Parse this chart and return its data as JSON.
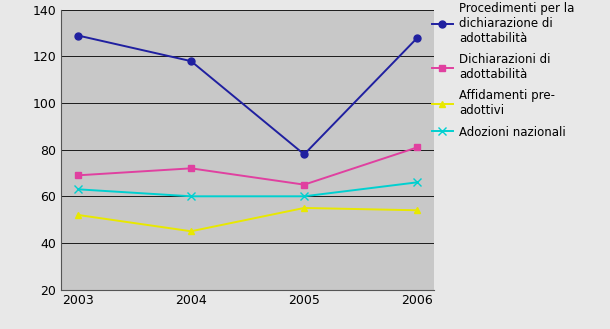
{
  "years": [
    2003,
    2004,
    2005,
    2006
  ],
  "series": [
    {
      "label": "Procedimenti per la\ndichiarazione di\nadottabilità",
      "values": [
        129,
        118,
        78,
        128
      ],
      "color": "#2020a0",
      "marker": "o",
      "markersize": 5
    },
    {
      "label": "Dichiarazioni di\nadottabilità",
      "values": [
        69,
        72,
        65,
        81
      ],
      "color": "#e040a0",
      "marker": "s",
      "markersize": 5
    },
    {
      "label": "Affidamenti pre-\nadottivi",
      "values": [
        52,
        45,
        55,
        54
      ],
      "color": "#e8e800",
      "marker": "^",
      "markersize": 5
    },
    {
      "label": "Adozioni nazionali",
      "values": [
        63,
        60,
        60,
        66
      ],
      "color": "#00d0d0",
      "marker": "x",
      "markersize": 6
    }
  ],
  "ylim": [
    20,
    140
  ],
  "yticks": [
    20,
    40,
    60,
    80,
    100,
    120,
    140
  ],
  "plot_bg_color": "#c8c8c8",
  "fig_bg_color": "#e8e8e8",
  "legend_fontsize": 8.5,
  "tick_fontsize": 9,
  "linewidth": 1.4,
  "grid_color": "#000000",
  "grid_linewidth": 0.6
}
